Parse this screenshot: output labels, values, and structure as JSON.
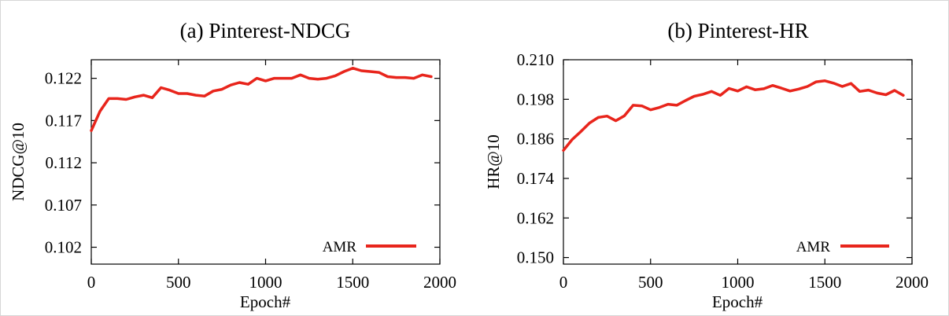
{
  "chart_data": [
    {
      "type": "line",
      "title": "(a) Pinterest-NDCG",
      "xlabel": "Epoch#",
      "ylabel": "NDCG@10",
      "xlim": [
        0,
        2000
      ],
      "ylim": [
        0.1,
        0.1242
      ],
      "xticks": [
        "0",
        "500",
        "1000",
        "1500",
        "2000"
      ],
      "xtick_values": [
        0,
        500,
        1000,
        1500,
        2000
      ],
      "yticks": [
        "0.102",
        "0.107",
        "0.112",
        "0.117",
        "0.122"
      ],
      "ytick_values": [
        0.102,
        0.107,
        0.112,
        0.117,
        0.122
      ],
      "legend_position": "bottom-right",
      "grid": false,
      "color": "#e8251c",
      "series": [
        {
          "name": "AMR",
          "x": [
            0,
            50,
            100,
            150,
            200,
            250,
            300,
            350,
            400,
            450,
            500,
            550,
            600,
            650,
            700,
            750,
            800,
            850,
            900,
            950,
            1000,
            1050,
            1100,
            1150,
            1200,
            1250,
            1300,
            1350,
            1400,
            1450,
            1500,
            1550,
            1600,
            1650,
            1700,
            1750,
            1800,
            1850,
            1900,
            1950
          ],
          "y": [
            0.1158,
            0.1181,
            0.1196,
            0.1196,
            0.1195,
            0.1198,
            0.12,
            0.1197,
            0.1209,
            0.1206,
            0.1202,
            0.1202,
            0.12,
            0.1199,
            0.1205,
            0.1207,
            0.1212,
            0.1215,
            0.1213,
            0.122,
            0.1217,
            0.122,
            0.122,
            0.122,
            0.1224,
            0.122,
            0.1219,
            0.122,
            0.1223,
            0.1228,
            0.1232,
            0.1229,
            0.1228,
            0.1227,
            0.1222,
            0.1221,
            0.1221,
            0.122,
            0.1224,
            0.1222
          ]
        }
      ]
    },
    {
      "type": "line",
      "title": "(b) Pinterest-HR",
      "xlabel": "Epoch#",
      "ylabel": "HR@10",
      "xlim": [
        0,
        2000
      ],
      "ylim": [
        0.148,
        0.21
      ],
      "xticks": [
        "0",
        "500",
        "1000",
        "1500",
        "2000"
      ],
      "xtick_values": [
        0,
        500,
        1000,
        1500,
        2000
      ],
      "yticks": [
        "0.150",
        "0.162",
        "0.174",
        "0.186",
        "0.198",
        "0.210"
      ],
      "ytick_values": [
        0.15,
        0.162,
        0.174,
        0.186,
        0.198,
        0.21
      ],
      "legend_position": "bottom-right",
      "grid": false,
      "color": "#e8251c",
      "series": [
        {
          "name": "AMR",
          "x": [
            0,
            50,
            100,
            150,
            200,
            250,
            300,
            350,
            400,
            450,
            500,
            550,
            600,
            650,
            700,
            750,
            800,
            850,
            900,
            950,
            1000,
            1050,
            1100,
            1150,
            1200,
            1250,
            1300,
            1350,
            1400,
            1450,
            1500,
            1550,
            1600,
            1650,
            1700,
            1750,
            1800,
            1850,
            1900,
            1950
          ],
          "y": [
            0.1825,
            0.1858,
            0.1882,
            0.1908,
            0.1925,
            0.1929,
            0.1915,
            0.193,
            0.1962,
            0.196,
            0.1948,
            0.1955,
            0.1965,
            0.1962,
            0.1976,
            0.1989,
            0.1995,
            0.2004,
            0.1992,
            0.2013,
            0.2005,
            0.2018,
            0.2009,
            0.2012,
            0.2022,
            0.2014,
            0.2005,
            0.2011,
            0.2019,
            0.2033,
            0.2036,
            0.2029,
            0.2019,
            0.2028,
            0.2004,
            0.2008,
            0.1999,
            0.1994,
            0.2007,
            0.1992
          ]
        }
      ]
    }
  ]
}
